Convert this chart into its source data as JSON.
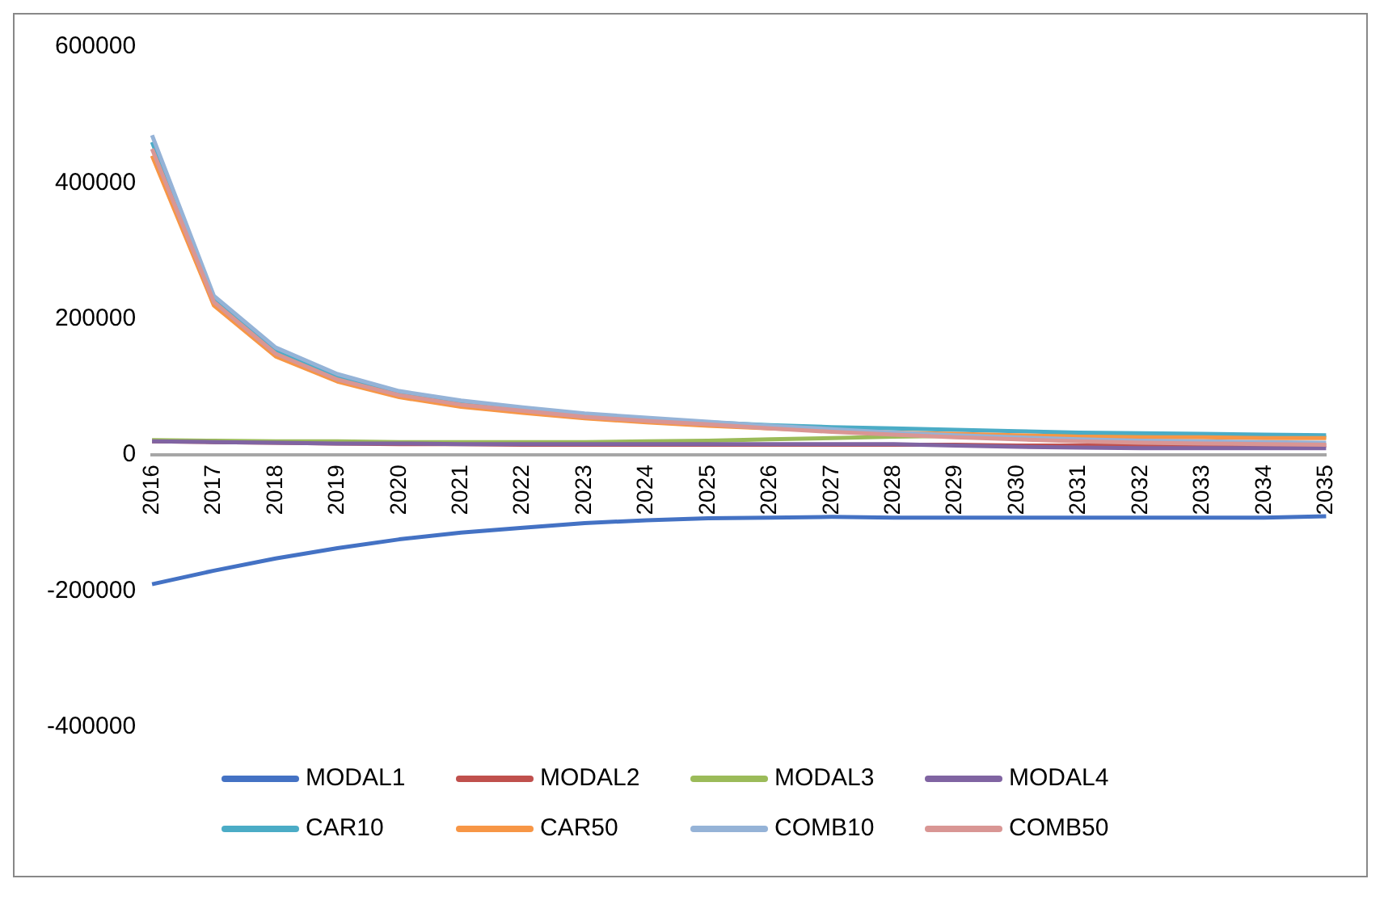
{
  "chart_data": {
    "type": "line",
    "categories": [
      "2016",
      "2017",
      "2018",
      "2019",
      "2020",
      "2021",
      "2022",
      "2023",
      "2024",
      "2025",
      "2026",
      "2027",
      "2028",
      "2029",
      "2030",
      "2031",
      "2032",
      "2033",
      "2034",
      "2035"
    ],
    "series": [
      {
        "name": "MODAL1",
        "color": "#4472c4",
        "values": [
          -190000,
          -170000,
          -152000,
          -137000,
          -124000,
          -114000,
          -107000,
          -100000,
          -96000,
          -93000,
          -92000,
          -91000,
          -92000,
          -92000,
          -92000,
          -92000,
          -92000,
          -92000,
          -92000,
          -90000
        ]
      },
      {
        "name": "MODAL2",
        "color": "#c0504d",
        "values": [
          20000,
          19000,
          18000,
          17000,
          16000,
          16000,
          15000,
          15000,
          15000,
          15000,
          15000,
          15000,
          15000,
          15000,
          14000,
          14000,
          14000,
          14000,
          14000,
          14000
        ]
      },
      {
        "name": "MODAL3",
        "color": "#9bbb59",
        "values": [
          22000,
          21000,
          20000,
          20000,
          19000,
          19000,
          19000,
          19000,
          20000,
          21000,
          23000,
          25000,
          27000,
          28000,
          28000,
          28000,
          28000,
          27000,
          27000,
          26000
        ]
      },
      {
        "name": "MODAL4",
        "color": "#8064a2",
        "values": [
          20000,
          19000,
          18000,
          17000,
          17000,
          16000,
          16000,
          16000,
          16000,
          16000,
          16000,
          16000,
          16000,
          14000,
          12000,
          11000,
          10000,
          10000,
          10000,
          10000
        ]
      },
      {
        "name": "CAR10",
        "color": "#4bacc6",
        "values": [
          460000,
          229000,
          153000,
          115000,
          91000,
          77000,
          68000,
          59000,
          53000,
          48000,
          44000,
          41000,
          39000,
          37000,
          35000,
          33000,
          32000,
          31000,
          30000,
          29000
        ]
      },
      {
        "name": "CAR50",
        "color": "#f79646",
        "values": [
          440000,
          220000,
          145000,
          108000,
          85000,
          71000,
          62000,
          54000,
          48000,
          43000,
          39000,
          36000,
          33000,
          31000,
          29000,
          27000,
          26000,
          26000,
          25000,
          25000
        ]
      },
      {
        "name": "COMB10",
        "color": "#95b3d7",
        "values": [
          470000,
          234000,
          158000,
          119000,
          94000,
          80000,
          70000,
          61000,
          55000,
          49000,
          43000,
          38000,
          33000,
          29000,
          26000,
          23000,
          21000,
          20000,
          19000,
          18000
        ]
      },
      {
        "name": "COMB50",
        "color": "#d99694",
        "values": [
          450000,
          225000,
          149000,
          111000,
          88000,
          74000,
          65000,
          56000,
          50000,
          45000,
          39000,
          34000,
          30000,
          26000,
          23000,
          20000,
          18000,
          17000,
          16000,
          15000
        ]
      }
    ],
    "ylim": [
      -400000,
      600000
    ],
    "yticks": [
      -400000,
      -200000,
      0,
      200000,
      400000,
      600000
    ],
    "grid": false,
    "legend": "bottom",
    "marker": "none",
    "line_style": "solid"
  }
}
